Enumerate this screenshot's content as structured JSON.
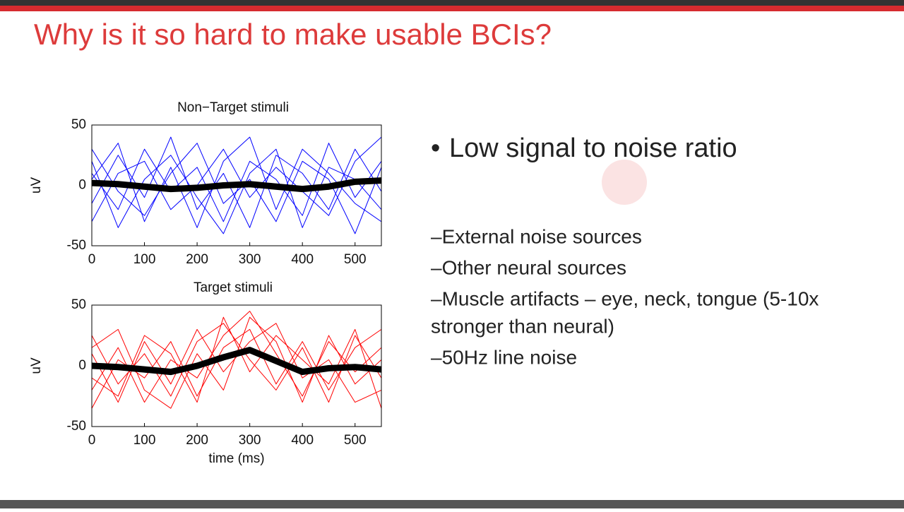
{
  "slide": {
    "title": "Why is it so hard to make usable BCIs?",
    "bullet": "Low signal to noise ratio",
    "sub_bullets": [
      "–External noise sources",
      "–Other neural sources",
      "–Muscle artifacts – eye, neck, tongue (5-10x",
      "stronger than neural)",
      "–50Hz line noise"
    ]
  },
  "chart_data": [
    {
      "type": "line",
      "title": "Non−Target stimuli",
      "ylabel": "uV",
      "x": [
        0,
        50,
        100,
        150,
        200,
        250,
        300,
        350,
        400,
        450,
        500,
        550
      ],
      "xlim": [
        0,
        550
      ],
      "ylim": [
        -50,
        50
      ],
      "xticks": [
        0,
        100,
        200,
        300,
        400,
        500
      ],
      "yticks": [
        -50,
        0,
        50
      ],
      "series": [
        {
          "color": "#0000ff",
          "width": 1,
          "values": [
            10,
            -20,
            30,
            -5,
            15,
            -30,
            20,
            5,
            -25,
            35,
            -10,
            20
          ]
        },
        {
          "color": "#0000ff",
          "width": 1,
          "values": [
            -15,
            25,
            -10,
            40,
            -20,
            10,
            -35,
            25,
            10,
            -20,
            30,
            -5
          ]
        },
        {
          "color": "#0000ff",
          "width": 1,
          "values": [
            30,
            -5,
            -25,
            10,
            35,
            -15,
            5,
            -30,
            20,
            5,
            -40,
            15
          ]
        },
        {
          "color": "#0000ff",
          "width": 1,
          "values": [
            -30,
            10,
            20,
            -20,
            0,
            30,
            -10,
            15,
            -5,
            -25,
            20,
            40
          ]
        },
        {
          "color": "#0000ff",
          "width": 1,
          "values": [
            5,
            35,
            -30,
            15,
            -35,
            20,
            40,
            -20,
            30,
            10,
            -15,
            -30
          ]
        },
        {
          "color": "#0000ff",
          "width": 1,
          "values": [
            20,
            -35,
            5,
            25,
            -10,
            -40,
            10,
            30,
            -35,
            15,
            5,
            -20
          ]
        },
        {
          "color": "#000000",
          "width": 9,
          "values": [
            2,
            1,
            -1,
            -3,
            -2,
            0,
            1,
            -1,
            -3,
            -1,
            3,
            4
          ]
        }
      ]
    },
    {
      "type": "line",
      "title": "Target stimuli",
      "ylabel": "uV",
      "xlabel": "time (ms)",
      "x": [
        0,
        50,
        100,
        150,
        200,
        250,
        300,
        350,
        400,
        450,
        500,
        550
      ],
      "xlim": [
        0,
        550
      ],
      "ylim": [
        -50,
        50
      ],
      "xticks": [
        0,
        100,
        200,
        300,
        400,
        500
      ],
      "yticks": [
        -50,
        0,
        50
      ],
      "series": [
        {
          "color": "#ff0000",
          "width": 1,
          "values": [
            25,
            -15,
            10,
            -25,
            20,
            35,
            5,
            -20,
            15,
            -30,
            25,
            -10
          ]
        },
        {
          "color": "#ff0000",
          "width": 1,
          "values": [
            -20,
            15,
            -30,
            5,
            -10,
            25,
            45,
            10,
            -25,
            20,
            -5,
            15
          ]
        },
        {
          "color": "#ff0000",
          "width": 1,
          "values": [
            10,
            -30,
            20,
            -15,
            30,
            -5,
            20,
            35,
            -10,
            5,
            -30,
            -20
          ]
        },
        {
          "color": "#ff0000",
          "width": 1,
          "values": [
            -35,
            5,
            -10,
            20,
            -25,
            15,
            30,
            -15,
            20,
            -20,
            15,
            30
          ]
        },
        {
          "color": "#ff0000",
          "width": 1,
          "values": [
            15,
            30,
            -20,
            -35,
            10,
            -20,
            40,
            20,
            -30,
            25,
            -15,
            5
          ]
        },
        {
          "color": "#ff0000",
          "width": 1,
          "values": [
            -10,
            -25,
            25,
            10,
            -30,
            40,
            -5,
            25,
            5,
            -15,
            30,
            -35
          ]
        },
        {
          "color": "#000000",
          "width": 9,
          "values": [
            0,
            -1,
            -3,
            -5,
            0,
            7,
            13,
            4,
            -5,
            -2,
            -1,
            -3
          ]
        }
      ]
    }
  ]
}
